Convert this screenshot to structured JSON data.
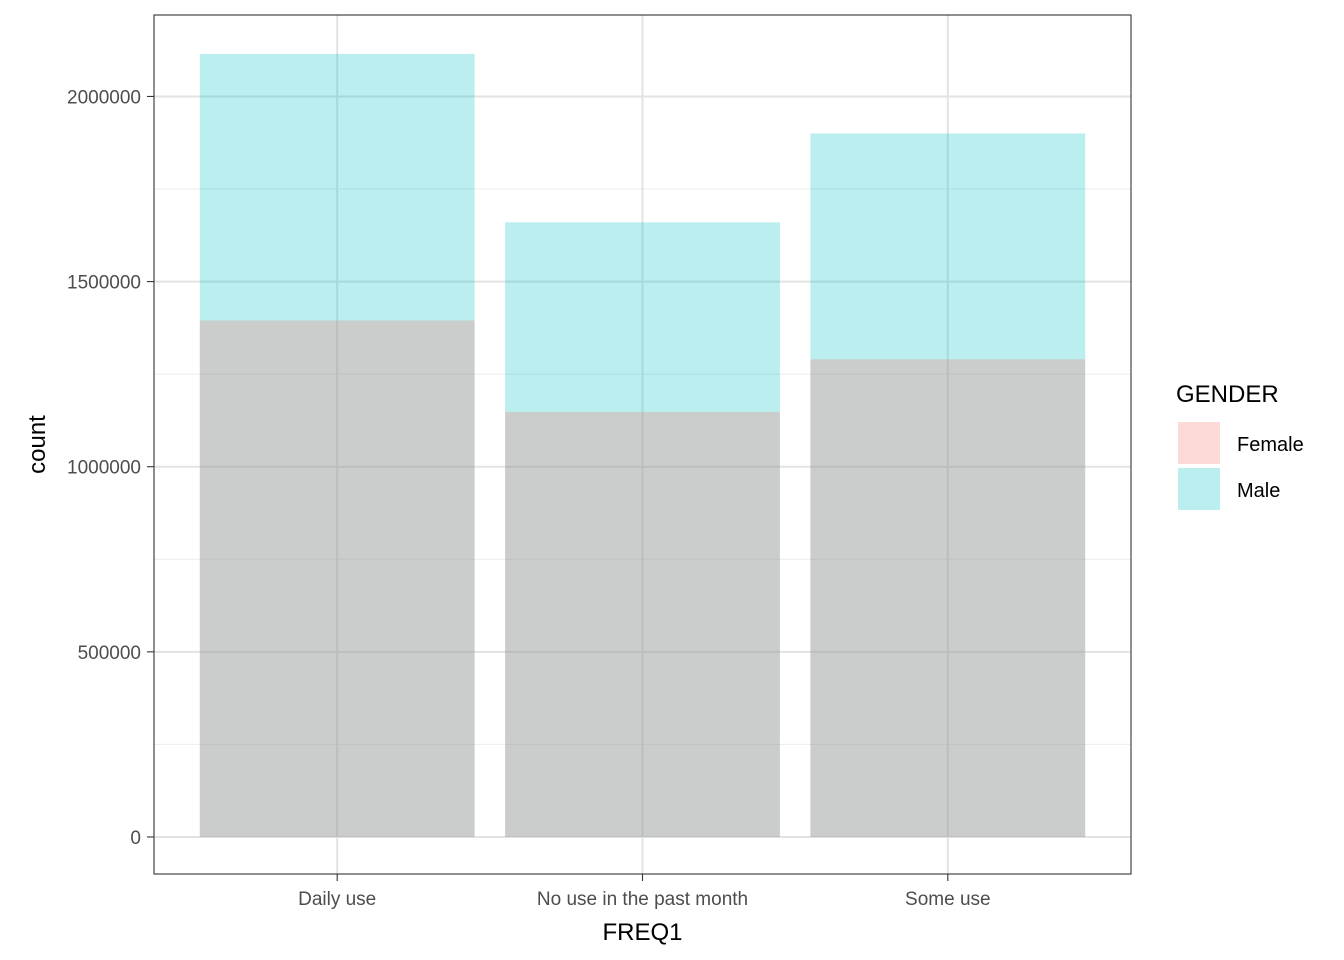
{
  "chart_data": {
    "type": "bar",
    "bar_mode": "overlay",
    "categories": [
      "Daily use",
      "No use in the past month",
      "Some use"
    ],
    "series": [
      {
        "name": "Male",
        "values": [
          2115000,
          1660000,
          1900000
        ],
        "color": "#00BFC4"
      },
      {
        "name": "Female",
        "values": [
          1395000,
          1148000,
          1290000
        ],
        "color": "#F8766D"
      }
    ],
    "fill_opacity": 0.27,
    "xlabel": "FREQ1",
    "ylabel": "count",
    "ylim": [
      -100000,
      2220000
    ],
    "yticks": [
      0,
      500000,
      1000000,
      1500000,
      2000000
    ],
    "ytick_labels": [
      "0",
      "500000",
      "1000000",
      "1500000",
      "2000000"
    ],
    "grid": true,
    "legend": {
      "title": "GENDER",
      "position": "right",
      "entries": [
        "Female",
        "Male"
      ],
      "colors": [
        "#F8766D",
        "#00BFC4"
      ]
    }
  }
}
